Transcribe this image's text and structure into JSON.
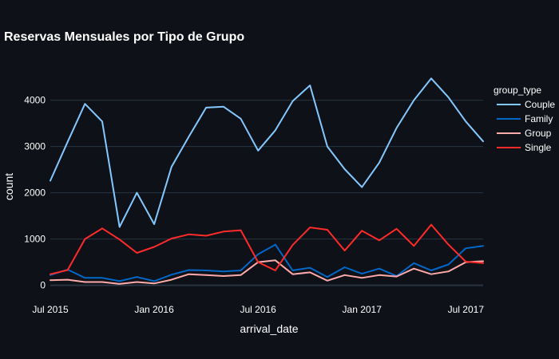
{
  "chart_data": {
    "type": "line",
    "title": "Reservas Mensuales por Tipo de Grupo",
    "xlabel": "arrival_date",
    "ylabel": "count",
    "ylim": [
      -300,
      4700
    ],
    "yticks": [
      0,
      1000,
      2000,
      3000,
      4000
    ],
    "xticks": [
      "2015-07",
      "2016-01",
      "2016-07",
      "2017-01",
      "2017-07"
    ],
    "xtick_labels": [
      "Jul 2015",
      "Jan 2016",
      "Jul 2016",
      "Jan 2017",
      "Jul 2017"
    ],
    "grid": true,
    "legend_title": "group_type",
    "legend_position": "right",
    "x": [
      "2015-07",
      "2015-08",
      "2015-09",
      "2015-10",
      "2015-11",
      "2015-12",
      "2016-01",
      "2016-02",
      "2016-03",
      "2016-04",
      "2016-05",
      "2016-06",
      "2016-07",
      "2016-08",
      "2016-09",
      "2016-10",
      "2016-11",
      "2016-12",
      "2017-01",
      "2017-02",
      "2017-03",
      "2017-04",
      "2017-05",
      "2017-06",
      "2017-07",
      "2017-08"
    ],
    "series": [
      {
        "name": "Couple",
        "color": "#83c9ff",
        "values": [
          2260,
          3100,
          3920,
          3540,
          1260,
          2000,
          1320,
          2560,
          3210,
          3840,
          3860,
          3600,
          2910,
          3350,
          3980,
          4320,
          3000,
          2510,
          2120,
          2650,
          3400,
          4000,
          4470,
          4060,
          3540,
          3110
        ]
      },
      {
        "name": "Family",
        "color": "#0068c9",
        "values": [
          220,
          340,
          160,
          160,
          90,
          180,
          90,
          230,
          330,
          320,
          300,
          320,
          670,
          880,
          320,
          380,
          180,
          390,
          250,
          360,
          200,
          480,
          320,
          450,
          800,
          850
        ]
      },
      {
        "name": "Group",
        "color": "#ffabab",
        "values": [
          110,
          120,
          70,
          70,
          30,
          70,
          40,
          120,
          240,
          220,
          200,
          220,
          500,
          540,
          240,
          280,
          100,
          220,
          160,
          220,
          190,
          360,
          240,
          300,
          500,
          520
        ]
      },
      {
        "name": "Single",
        "color": "#ff2b2b",
        "values": [
          240,
          330,
          1000,
          1230,
          990,
          700,
          830,
          1010,
          1100,
          1070,
          1160,
          1190,
          500,
          320,
          870,
          1250,
          1200,
          750,
          1180,
          970,
          1220,
          850,
          1310,
          880,
          510,
          480
        ]
      }
    ]
  }
}
